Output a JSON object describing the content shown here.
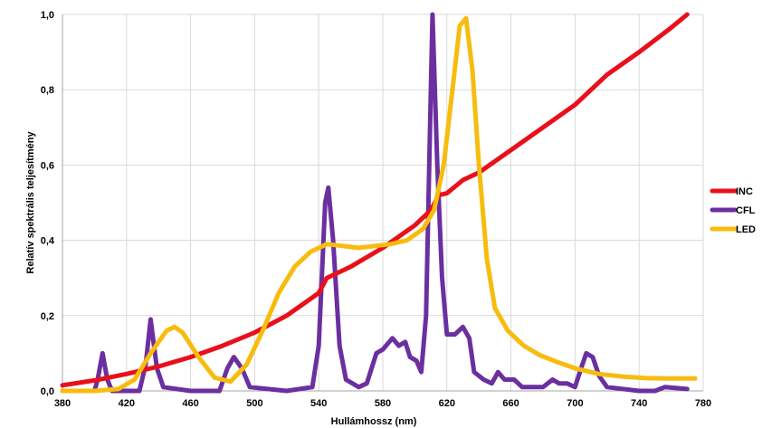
{
  "chart_data": {
    "type": "line",
    "title": "",
    "xlabel": "Hullámhossz (nm)",
    "ylabel": "Relatív spektrális teljesítmény",
    "xlim": [
      380,
      780
    ],
    "ylim": [
      0,
      1.0
    ],
    "x_ticks": [
      380,
      420,
      460,
      500,
      540,
      580,
      620,
      660,
      700,
      740,
      780
    ],
    "x_tick_labels": [
      "380",
      "420",
      "460",
      "500",
      "540",
      "580",
      "620",
      "660",
      "700",
      "740",
      "780"
    ],
    "y_ticks": [
      0,
      0.2,
      0.4,
      0.6,
      0.8,
      1.0
    ],
    "y_tick_labels": [
      "0,0",
      "0,2",
      "0,4",
      "0,6",
      "0,8",
      "1,0"
    ],
    "grid": true,
    "legend_position": "right",
    "series": [
      {
        "name": "INC",
        "color": "#e8101a",
        "points": [
          [
            380,
            0.015
          ],
          [
            400,
            0.028
          ],
          [
            420,
            0.045
          ],
          [
            440,
            0.065
          ],
          [
            460,
            0.09
          ],
          [
            480,
            0.12
          ],
          [
            500,
            0.155
          ],
          [
            520,
            0.2
          ],
          [
            540,
            0.26
          ],
          [
            545,
            0.3
          ],
          [
            560,
            0.33
          ],
          [
            580,
            0.38
          ],
          [
            600,
            0.44
          ],
          [
            610,
            0.48
          ],
          [
            615,
            0.52
          ],
          [
            620,
            0.525
          ],
          [
            630,
            0.56
          ],
          [
            640,
            0.58
          ],
          [
            660,
            0.64
          ],
          [
            680,
            0.7
          ],
          [
            700,
            0.76
          ],
          [
            710,
            0.8
          ],
          [
            720,
            0.84
          ],
          [
            740,
            0.9
          ],
          [
            760,
            0.965
          ],
          [
            770,
            1.0
          ]
        ]
      },
      {
        "name": "CFL",
        "color": "#6b2fa0",
        "points": [
          [
            380,
            0.0
          ],
          [
            400,
            0.0
          ],
          [
            402,
            0.03
          ],
          [
            405,
            0.1
          ],
          [
            408,
            0.03
          ],
          [
            411,
            0.0
          ],
          [
            428,
            0.0
          ],
          [
            432,
            0.07
          ],
          [
            435,
            0.19
          ],
          [
            439,
            0.06
          ],
          [
            443,
            0.01
          ],
          [
            460,
            0.0
          ],
          [
            478,
            0.0
          ],
          [
            483,
            0.06
          ],
          [
            487,
            0.09
          ],
          [
            492,
            0.06
          ],
          [
            497,
            0.01
          ],
          [
            520,
            0.0
          ],
          [
            536,
            0.01
          ],
          [
            540,
            0.12
          ],
          [
            544,
            0.5
          ],
          [
            546,
            0.54
          ],
          [
            549,
            0.4
          ],
          [
            553,
            0.12
          ],
          [
            557,
            0.03
          ],
          [
            565,
            0.01
          ],
          [
            570,
            0.02
          ],
          [
            576,
            0.1
          ],
          [
            580,
            0.11
          ],
          [
            586,
            0.14
          ],
          [
            590,
            0.12
          ],
          [
            594,
            0.13
          ],
          [
            597,
            0.09
          ],
          [
            601,
            0.08
          ],
          [
            604,
            0.05
          ],
          [
            607,
            0.2
          ],
          [
            609,
            0.6
          ],
          [
            611,
            1.0
          ],
          [
            614,
            0.6
          ],
          [
            617,
            0.3
          ],
          [
            620,
            0.15
          ],
          [
            625,
            0.15
          ],
          [
            630,
            0.17
          ],
          [
            634,
            0.14
          ],
          [
            637,
            0.05
          ],
          [
            643,
            0.03
          ],
          [
            648,
            0.02
          ],
          [
            652,
            0.05
          ],
          [
            656,
            0.03
          ],
          [
            662,
            0.03
          ],
          [
            667,
            0.01
          ],
          [
            680,
            0.01
          ],
          [
            686,
            0.03
          ],
          [
            690,
            0.02
          ],
          [
            695,
            0.02
          ],
          [
            700,
            0.01
          ],
          [
            703,
            0.05
          ],
          [
            707,
            0.1
          ],
          [
            711,
            0.09
          ],
          [
            715,
            0.04
          ],
          [
            720,
            0.01
          ],
          [
            740,
            0.0
          ],
          [
            750,
            0.0
          ],
          [
            756,
            0.01
          ],
          [
            770,
            0.005
          ]
        ]
      },
      {
        "name": "LED",
        "color": "#f7bc0e",
        "points": [
          [
            380,
            0.0
          ],
          [
            400,
            0.0
          ],
          [
            415,
            0.005
          ],
          [
            425,
            0.03
          ],
          [
            435,
            0.1
          ],
          [
            445,
            0.16
          ],
          [
            450,
            0.17
          ],
          [
            455,
            0.155
          ],
          [
            465,
            0.09
          ],
          [
            475,
            0.035
          ],
          [
            485,
            0.025
          ],
          [
            495,
            0.07
          ],
          [
            505,
            0.16
          ],
          [
            515,
            0.26
          ],
          [
            525,
            0.33
          ],
          [
            535,
            0.37
          ],
          [
            545,
            0.39
          ],
          [
            555,
            0.385
          ],
          [
            565,
            0.38
          ],
          [
            575,
            0.385
          ],
          [
            585,
            0.39
          ],
          [
            595,
            0.4
          ],
          [
            605,
            0.43
          ],
          [
            612,
            0.48
          ],
          [
            618,
            0.6
          ],
          [
            624,
            0.82
          ],
          [
            628,
            0.97
          ],
          [
            632,
            0.99
          ],
          [
            636,
            0.85
          ],
          [
            640,
            0.6
          ],
          [
            645,
            0.35
          ],
          [
            650,
            0.22
          ],
          [
            658,
            0.16
          ],
          [
            668,
            0.12
          ],
          [
            678,
            0.095
          ],
          [
            690,
            0.075
          ],
          [
            700,
            0.06
          ],
          [
            715,
            0.045
          ],
          [
            730,
            0.038
          ],
          [
            745,
            0.034
          ],
          [
            760,
            0.033
          ],
          [
            775,
            0.033
          ]
        ]
      }
    ]
  }
}
